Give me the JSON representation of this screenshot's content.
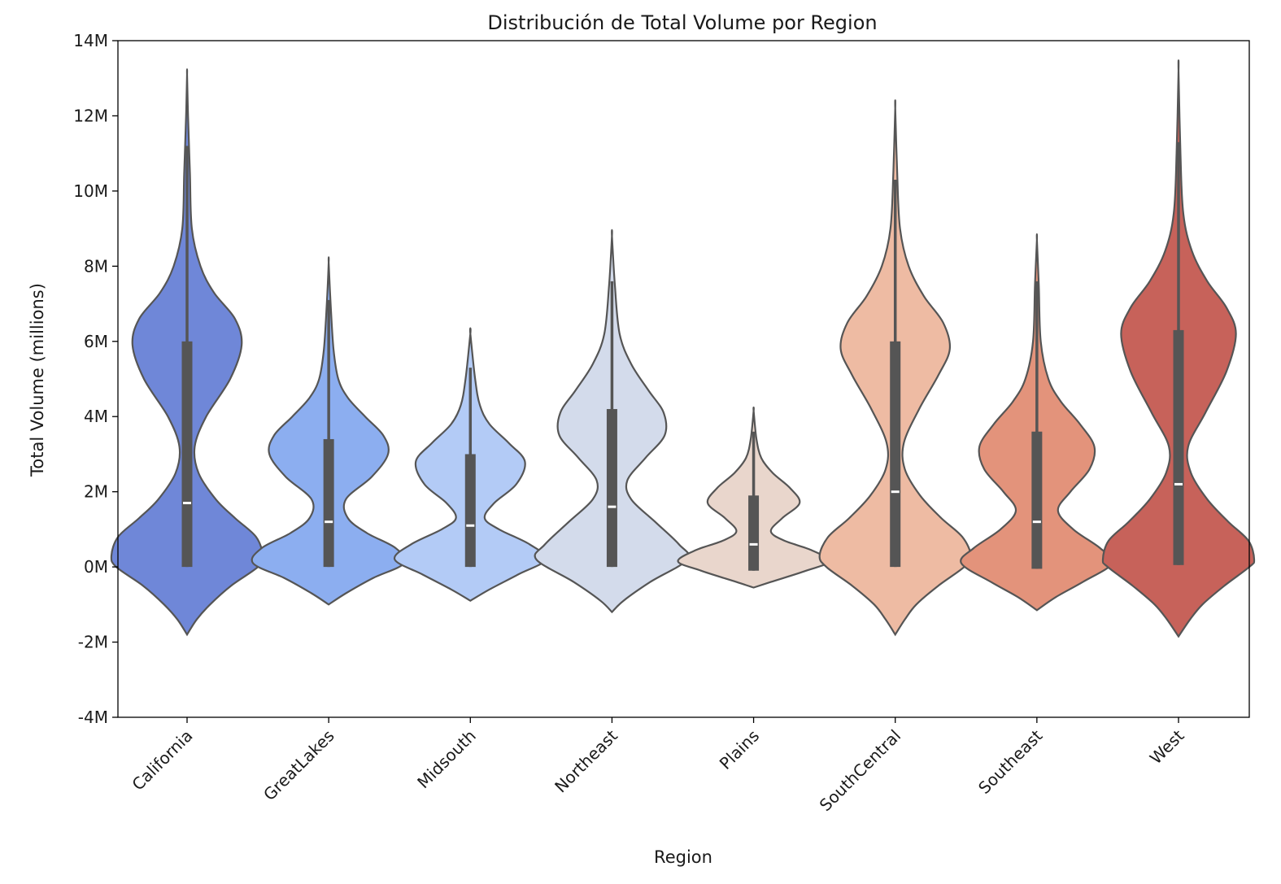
{
  "chart_data": {
    "type": "violin",
    "title": "Distribución de Total Volume por Region",
    "xlabel": "Region",
    "ylabel": "Total Volume (millions)",
    "ylim": [
      -4,
      14
    ],
    "yticks": [
      -4,
      -2,
      0,
      2,
      4,
      6,
      8,
      10,
      12,
      14
    ],
    "ytick_labels": [
      "-4M",
      "-2M",
      "0M",
      "2M",
      "4M",
      "6M",
      "8M",
      "10M",
      "12M",
      "14M"
    ],
    "categories": [
      "California",
      "GreatLakes",
      "Midsouth",
      "Northeast",
      "Plains",
      "SouthCentral",
      "Southeast",
      "West"
    ],
    "grid": false,
    "legend": "none",
    "violins": [
      {
        "region": "California",
        "color": "#6f87d8",
        "min": -1.8,
        "max": 13.1,
        "q1": 0.0,
        "median": 1.7,
        "q3": 6.0,
        "whisker_low": 0.0,
        "whisker_high": 11.2,
        "density": [
          [
            -1.8,
            0.0
          ],
          [
            -1.4,
            0.1
          ],
          [
            -1.0,
            0.24
          ],
          [
            -0.5,
            0.46
          ],
          [
            0.0,
            0.74
          ],
          [
            0.3,
            0.79
          ],
          [
            0.8,
            0.72
          ],
          [
            1.3,
            0.5
          ],
          [
            1.8,
            0.3
          ],
          [
            2.5,
            0.12
          ],
          [
            3.2,
            0.08
          ],
          [
            4.0,
            0.2
          ],
          [
            5.0,
            0.45
          ],
          [
            5.9,
            0.57
          ],
          [
            6.6,
            0.5
          ],
          [
            7.3,
            0.28
          ],
          [
            8.0,
            0.14
          ],
          [
            9.0,
            0.05
          ],
          [
            10.5,
            0.03
          ],
          [
            12.0,
            0.01
          ],
          [
            13.1,
            0.0
          ]
        ]
      },
      {
        "region": "GreatLakes",
        "color": "#8caef0",
        "min": -1.0,
        "max": 8.1,
        "q1": 0.0,
        "median": 1.2,
        "q3": 3.4,
        "whisker_low": 0.0,
        "whisker_high": 7.1,
        "density": [
          [
            -1.0,
            0.0
          ],
          [
            -0.7,
            0.18
          ],
          [
            -0.3,
            0.46
          ],
          [
            0.1,
            0.79
          ],
          [
            0.5,
            0.7
          ],
          [
            0.9,
            0.4
          ],
          [
            1.3,
            0.2
          ],
          [
            1.8,
            0.18
          ],
          [
            2.4,
            0.45
          ],
          [
            3.0,
            0.62
          ],
          [
            3.5,
            0.57
          ],
          [
            4.0,
            0.38
          ],
          [
            4.5,
            0.2
          ],
          [
            5.0,
            0.1
          ],
          [
            5.8,
            0.05
          ],
          [
            7.0,
            0.02
          ],
          [
            8.1,
            0.0
          ]
        ]
      },
      {
        "region": "Midsouth",
        "color": "#b3cbf6",
        "min": -0.9,
        "max": 6.2,
        "q1": 0.0,
        "median": 1.1,
        "q3": 3.0,
        "whisker_low": 0.0,
        "whisker_high": 5.3,
        "density": [
          [
            -0.9,
            0.0
          ],
          [
            -0.6,
            0.2
          ],
          [
            -0.2,
            0.5
          ],
          [
            0.2,
            0.79
          ],
          [
            0.6,
            0.62
          ],
          [
            1.0,
            0.3
          ],
          [
            1.3,
            0.15
          ],
          [
            1.7,
            0.25
          ],
          [
            2.2,
            0.48
          ],
          [
            2.8,
            0.57
          ],
          [
            3.3,
            0.4
          ],
          [
            3.8,
            0.2
          ],
          [
            4.3,
            0.1
          ],
          [
            5.0,
            0.05
          ],
          [
            6.2,
            0.0
          ]
        ]
      },
      {
        "region": "Northeast",
        "color": "#d3dbeb",
        "min": -1.2,
        "max": 8.8,
        "q1": 0.0,
        "median": 1.6,
        "q3": 4.2,
        "whisker_low": 0.0,
        "whisker_high": 7.6,
        "density": [
          [
            -1.2,
            0.0
          ],
          [
            -0.9,
            0.12
          ],
          [
            -0.4,
            0.4
          ],
          [
            0.2,
            0.79
          ],
          [
            0.6,
            0.7
          ],
          [
            1.2,
            0.45
          ],
          [
            1.8,
            0.2
          ],
          [
            2.3,
            0.16
          ],
          [
            2.9,
            0.35
          ],
          [
            3.5,
            0.55
          ],
          [
            4.1,
            0.54
          ],
          [
            4.7,
            0.38
          ],
          [
            5.4,
            0.2
          ],
          [
            6.2,
            0.08
          ],
          [
            7.5,
            0.03
          ],
          [
            8.8,
            0.0
          ]
        ]
      },
      {
        "region": "Plains",
        "color": "#e9d6cc",
        "min": -0.55,
        "max": 4.15,
        "q1": -0.1,
        "median": 0.6,
        "q3": 1.9,
        "whisker_low": -0.1,
        "whisker_high": 3.6,
        "density": [
          [
            -0.55,
            0.0
          ],
          [
            -0.4,
            0.18
          ],
          [
            -0.1,
            0.55
          ],
          [
            0.15,
            0.79
          ],
          [
            0.45,
            0.6
          ],
          [
            0.7,
            0.32
          ],
          [
            0.95,
            0.18
          ],
          [
            1.3,
            0.3
          ],
          [
            1.7,
            0.48
          ],
          [
            2.1,
            0.38
          ],
          [
            2.5,
            0.2
          ],
          [
            2.9,
            0.08
          ],
          [
            3.4,
            0.03
          ],
          [
            4.15,
            0.0
          ]
        ]
      },
      {
        "region": "SouthCentral",
        "color": "#eebba3",
        "min": -1.8,
        "max": 12.2,
        "q1": 0.0,
        "median": 2.0,
        "q3": 6.0,
        "whisker_low": 0.0,
        "whisker_high": 10.3,
        "density": [
          [
            -1.8,
            0.0
          ],
          [
            -1.4,
            0.1
          ],
          [
            -1.0,
            0.22
          ],
          [
            -0.5,
            0.45
          ],
          [
            0.0,
            0.72
          ],
          [
            0.3,
            0.79
          ],
          [
            0.8,
            0.7
          ],
          [
            1.3,
            0.48
          ],
          [
            1.9,
            0.26
          ],
          [
            2.6,
            0.1
          ],
          [
            3.3,
            0.09
          ],
          [
            4.2,
            0.25
          ],
          [
            5.1,
            0.45
          ],
          [
            5.8,
            0.57
          ],
          [
            6.5,
            0.5
          ],
          [
            7.2,
            0.3
          ],
          [
            8.0,
            0.14
          ],
          [
            9.0,
            0.05
          ],
          [
            10.5,
            0.02
          ],
          [
            12.2,
            0.0
          ]
        ]
      },
      {
        "region": "Southeast",
        "color": "#e3937b",
        "min": -1.15,
        "max": 8.7,
        "q1": -0.05,
        "median": 1.2,
        "q3": 3.6,
        "whisker_low": -0.05,
        "whisker_high": 7.6,
        "density": [
          [
            -1.15,
            0.0
          ],
          [
            -0.8,
            0.2
          ],
          [
            -0.4,
            0.48
          ],
          [
            0.1,
            0.79
          ],
          [
            0.5,
            0.66
          ],
          [
            1.0,
            0.38
          ],
          [
            1.5,
            0.22
          ],
          [
            2.0,
            0.35
          ],
          [
            2.6,
            0.55
          ],
          [
            3.2,
            0.6
          ],
          [
            3.8,
            0.45
          ],
          [
            4.4,
            0.25
          ],
          [
            5.0,
            0.12
          ],
          [
            6.0,
            0.04
          ],
          [
            7.5,
            0.02
          ],
          [
            8.7,
            0.0
          ]
        ]
      },
      {
        "region": "West",
        "color": "#c7625a",
        "min": -1.85,
        "max": 13.2,
        "q1": 0.05,
        "median": 2.2,
        "q3": 6.3,
        "whisker_low": 0.05,
        "whisker_high": 11.3,
        "density": [
          [
            -1.85,
            0.0
          ],
          [
            -1.4,
            0.12
          ],
          [
            -1.0,
            0.25
          ],
          [
            -0.5,
            0.48
          ],
          [
            0.0,
            0.74
          ],
          [
            0.2,
            0.79
          ],
          [
            0.7,
            0.73
          ],
          [
            1.2,
            0.52
          ],
          [
            1.8,
            0.3
          ],
          [
            2.5,
            0.13
          ],
          [
            3.2,
            0.1
          ],
          [
            4.1,
            0.28
          ],
          [
            5.2,
            0.5
          ],
          [
            6.2,
            0.6
          ],
          [
            6.9,
            0.5
          ],
          [
            7.6,
            0.3
          ],
          [
            8.4,
            0.14
          ],
          [
            9.4,
            0.05
          ],
          [
            11.0,
            0.02
          ],
          [
            13.2,
            0.0
          ]
        ]
      }
    ]
  }
}
